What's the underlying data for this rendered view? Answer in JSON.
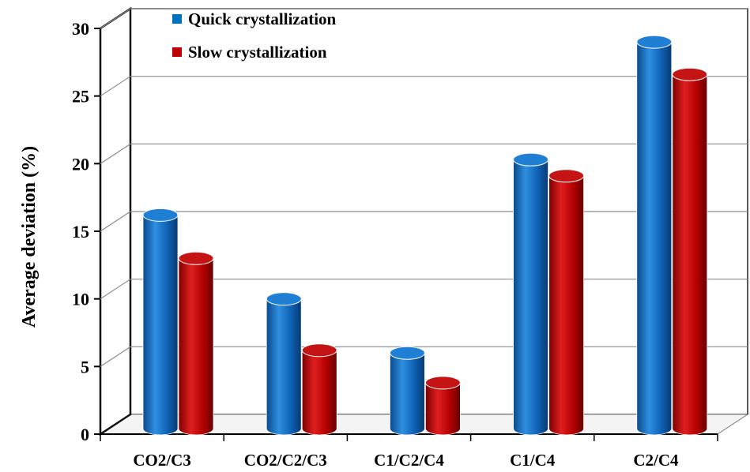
{
  "chart_data": {
    "type": "bar",
    "title": "",
    "xlabel": "",
    "ylabel": "Average deviation (%)",
    "ylim": [
      0,
      30
    ],
    "yticks": [
      0,
      5,
      10,
      15,
      20,
      25,
      30
    ],
    "grid": true,
    "legend_position": "top-left",
    "categories": [
      "CO2/C3",
      "CO2/C2/C3",
      "C1/C2/C4",
      "C1/C4",
      "C2/C4"
    ],
    "series": [
      {
        "name": "Quick crystallization",
        "color": "#0070C0",
        "values": [
          15.5,
          9.3,
          5.3,
          19.6,
          28.3
        ]
      },
      {
        "name": "Slow crystallization",
        "color": "#C00000",
        "values": [
          12.3,
          5.5,
          3.1,
          18.4,
          25.9
        ]
      }
    ]
  }
}
